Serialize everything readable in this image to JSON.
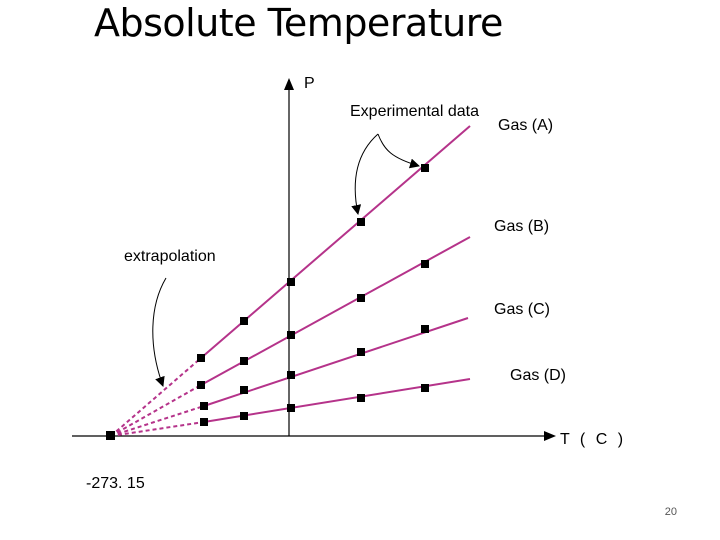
{
  "slide": {
    "title": "Absolute Temperature",
    "page_number": "20"
  },
  "colors": {
    "line": "#b5338a",
    "axis": "#000000",
    "point": "#000000"
  },
  "diagram": {
    "y_axis_label": "P",
    "x_axis_label": "T ( C )",
    "origin_label": "-273. 15",
    "annotations": {
      "experimental": "Experimental data",
      "extrapolation": "extrapolation"
    },
    "series": [
      {
        "name": "Gas (A)"
      },
      {
        "name": "Gas (B)"
      },
      {
        "name": "Gas (C)"
      },
      {
        "name": "Gas (D)"
      }
    ]
  }
}
